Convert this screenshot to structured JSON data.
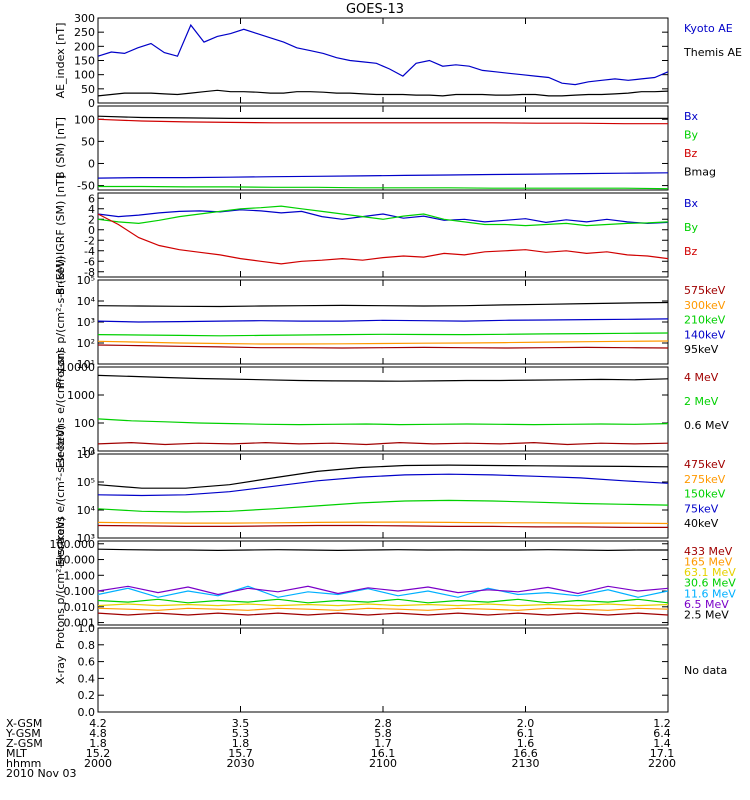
{
  "title": "GOES-13",
  "colors": {
    "black": "#000000",
    "blue": "#0000c8",
    "green": "#00d000",
    "red": "#d00000",
    "orange": "#ff9900",
    "yellow": "#e6d200",
    "cyan": "#00b0ff",
    "purple": "#7a00c8",
    "darkred": "#a00000"
  },
  "x_axis": {
    "time_labels": [
      "2000",
      "2030",
      "2100",
      "2130",
      "2200"
    ],
    "rows": [
      {
        "name": "X-GSM",
        "values": [
          "4.2",
          "3.5",
          "2.8",
          "2.0",
          "1.2"
        ]
      },
      {
        "name": "Y-GSM",
        "values": [
          "4.8",
          "5.3",
          "5.8",
          "6.1",
          "6.4"
        ]
      },
      {
        "name": "Z-GSM",
        "values": [
          "1.8",
          "1.8",
          "1.7",
          "1.6",
          "1.4"
        ]
      },
      {
        "name": "MLT",
        "values": [
          "15.2",
          "15.7",
          "16.1",
          "16.6",
          "17.1"
        ]
      },
      {
        "name": "hhmm",
        "values": [
          "2000",
          "2030",
          "2100",
          "2130",
          "2200"
        ]
      }
    ],
    "date": "2010 Nov 03"
  },
  "chart_data": [
    {
      "type": "line",
      "ylabel": "AE_index [nT]",
      "scale": "linear",
      "ylim": [
        0,
        300
      ],
      "tick_labels": [
        "0",
        "50",
        "100",
        "150",
        "200",
        "250",
        "300"
      ],
      "ticks": [
        0,
        50,
        100,
        150,
        200,
        250,
        300
      ],
      "series": [
        {
          "name": "Kyoto AE",
          "color": "#0000c8",
          "values": [
            165,
            180,
            175,
            195,
            210,
            178,
            165,
            275,
            215,
            235,
            245,
            260,
            245,
            230,
            215,
            195,
            185,
            175,
            160,
            150,
            145,
            140,
            120,
            95,
            140,
            150,
            130,
            135,
            130,
            115,
            110,
            105,
            100,
            95,
            90,
            70,
            65,
            75,
            80,
            85,
            80,
            85,
            90,
            110
          ]
        },
        {
          "name": "Themis AE",
          "color": "#000000",
          "values": [
            25,
            30,
            35,
            35,
            35,
            32,
            30,
            35,
            40,
            45,
            40,
            40,
            38,
            35,
            35,
            40,
            40,
            38,
            35,
            35,
            32,
            30,
            30,
            30,
            28,
            28,
            25,
            30,
            30,
            30,
            28,
            28,
            30,
            30,
            25,
            25,
            28,
            30,
            30,
            32,
            35,
            40,
            40,
            42
          ]
        }
      ]
    },
    {
      "type": "line",
      "ylabel": "B (SM) [nT]",
      "scale": "linear",
      "ylim": [
        -60,
        130
      ],
      "tick_labels": [
        "-50",
        "0",
        "50",
        "100"
      ],
      "ticks": [
        -50,
        0,
        50,
        100
      ],
      "series": [
        {
          "name": "Bx",
          "color": "#0000c8",
          "values": [
            -33,
            -32,
            -32,
            -31,
            -30,
            -29,
            -28,
            -27,
            -26,
            -25,
            -24,
            -23,
            -22,
            -21
          ]
        },
        {
          "name": "By",
          "color": "#00d000",
          "values": [
            -52,
            -52,
            -53,
            -53,
            -54,
            -54,
            -55,
            -55,
            -55,
            -56,
            -56,
            -56,
            -56,
            -57
          ]
        },
        {
          "name": "Bz",
          "color": "#d00000",
          "values": [
            100,
            96,
            94,
            93,
            92,
            92,
            92,
            92,
            92,
            92,
            91,
            91,
            90,
            90
          ]
        },
        {
          "name": "Bmag",
          "color": "#000000",
          "values": [
            107,
            104,
            103,
            102,
            102,
            102,
            102,
            102,
            102,
            102,
            102,
            102,
            102,
            102
          ]
        }
      ]
    },
    {
      "type": "line",
      "ylabel": "B (SM)-IGRF (SM) [nT]",
      "scale": "linear",
      "ylim": [
        -9,
        7
      ],
      "tick_labels": [
        "-8",
        "-6",
        "-4",
        "-2",
        "0",
        "2",
        "4",
        "6"
      ],
      "ticks": [
        -8,
        -6,
        -4,
        -2,
        0,
        2,
        4,
        6
      ],
      "series": [
        {
          "name": "Bx",
          "color": "#0000c8",
          "values": [
            3,
            2.5,
            2.8,
            3.2,
            3.5,
            3.6,
            3.4,
            3.8,
            3.6,
            3.2,
            3.5,
            2.5,
            2.0,
            2.5,
            3.0,
            2.2,
            2.6,
            1.8,
            2.0,
            1.5,
            1.8,
            2.1,
            1.4,
            1.9,
            1.5,
            2.0,
            1.5,
            1.2,
            1.4
          ]
        },
        {
          "name": "By",
          "color": "#00d000",
          "values": [
            2,
            1.5,
            1.2,
            1.8,
            2.5,
            3.0,
            3.5,
            4.0,
            4.2,
            4.5,
            4.0,
            3.5,
            3.0,
            2.5,
            2.0,
            2.6,
            3.0,
            2.0,
            1.5,
            1.0,
            1.0,
            0.8,
            1.0,
            1.2,
            0.8,
            1.0,
            1.2,
            1.3,
            1.5
          ]
        },
        {
          "name": "Bz",
          "color": "#d00000",
          "values": [
            3,
            1,
            -1.5,
            -3,
            -3.8,
            -4.3,
            -4.8,
            -5.5,
            -6.0,
            -6.5,
            -6.0,
            -5.8,
            -5.5,
            -5.8,
            -5.3,
            -5.0,
            -5.2,
            -4.5,
            -4.8,
            -4.2,
            -4.0,
            -3.8,
            -4.3,
            -4.0,
            -4.5,
            -4.2,
            -4.8,
            -5.0,
            -5.5
          ]
        }
      ]
    },
    {
      "type": "line",
      "ylabel": "Protons p/(cm²-s-sr-keV)",
      "scale": "log",
      "ylim": [
        10,
        100000
      ],
      "tick_labels": [
        "10¹",
        "10²",
        "10³",
        "10⁴",
        "10⁵"
      ],
      "ticks": [
        10,
        100,
        1000,
        10000,
        100000
      ],
      "series": [
        {
          "name": "575keV",
          "color": "#a00000",
          "values": [
            80,
            75,
            70,
            65,
            60,
            60,
            58,
            60,
            62,
            60,
            58,
            60,
            62,
            60,
            58
          ]
        },
        {
          "name": "300keV",
          "color": "#ff9900",
          "values": [
            120,
            110,
            100,
            95,
            90,
            90,
            92,
            95,
            98,
            100,
            105,
            110,
            115,
            120,
            125
          ]
        },
        {
          "name": "210keV",
          "color": "#00d000",
          "values": [
            250,
            240,
            230,
            220,
            230,
            240,
            250,
            260,
            255,
            250,
            260,
            270,
            280,
            290,
            300
          ]
        },
        {
          "name": "140keV",
          "color": "#0000c8",
          "values": [
            1100,
            1000,
            1050,
            1100,
            1150,
            1100,
            1100,
            1200,
            1150,
            1100,
            1200,
            1250,
            1300,
            1350,
            1400
          ]
        },
        {
          "name": "95keV",
          "color": "#000000",
          "values": [
            6000,
            5800,
            5600,
            5500,
            5800,
            6000,
            6200,
            6000,
            5800,
            6000,
            6500,
            7000,
            7500,
            8000,
            8500
          ]
        }
      ]
    },
    {
      "type": "line",
      "ylabel": "Electrons e/(cm²-s-sr)",
      "scale": "log",
      "ylim": [
        10,
        10000
      ],
      "tick_labels": [
        "10",
        "100",
        "1000",
        "10000"
      ],
      "ticks": [
        10,
        100,
        1000,
        10000
      ],
      "series": [
        {
          "name": "4 MeV",
          "color": "#a00000",
          "values": [
            18,
            20,
            17,
            19,
            18,
            20,
            18,
            19,
            17,
            20,
            18,
            19,
            18,
            20,
            17,
            19,
            18,
            19
          ]
        },
        {
          "name": "2 MeV",
          "color": "#00d000",
          "values": [
            140,
            120,
            110,
            100,
            95,
            90,
            88,
            90,
            92,
            88,
            90,
            92,
            90,
            88,
            90,
            92,
            90,
            95
          ]
        },
        {
          "name": "0.6 MeV",
          "color": "#000000",
          "values": [
            5000,
            4600,
            4200,
            3900,
            3700,
            3500,
            3300,
            3200,
            3150,
            3100,
            3200,
            3300,
            3300,
            3400,
            3500,
            3600,
            3500,
            3800
          ]
        }
      ]
    },
    {
      "type": "line",
      "ylabel": "Electrons e/(cm²-s-sr-keV)",
      "scale": "log",
      "ylim": [
        1000,
        1000000
      ],
      "tick_labels": [
        "10³",
        "10⁴",
        "10⁵",
        "10⁶"
      ],
      "ticks": [
        1000,
        10000,
        100000,
        1000000
      ],
      "series": [
        {
          "name": "475keV",
          "color": "#a00000",
          "values": [
            2800,
            2700,
            2600,
            2600,
            2700,
            2800,
            2800,
            2700,
            2600,
            2600,
            2500,
            2500,
            2400,
            2400
          ]
        },
        {
          "name": "275keV",
          "color": "#ff9900",
          "values": [
            3600,
            3500,
            3400,
            3400,
            3500,
            3600,
            3700,
            3700,
            3600,
            3500,
            3500,
            3400,
            3400,
            3300
          ]
        },
        {
          "name": "150keV",
          "color": "#00d000",
          "values": [
            11000,
            9000,
            8500,
            9000,
            11000,
            14000,
            18000,
            21000,
            22000,
            21000,
            19000,
            17000,
            16000,
            15000
          ]
        },
        {
          "name": "75keV",
          "color": "#0000c8",
          "values": [
            35000,
            33000,
            35000,
            45000,
            70000,
            110000,
            150000,
            180000,
            190000,
            180000,
            160000,
            140000,
            110000,
            90000
          ]
        },
        {
          "name": "40keV",
          "color": "#000000",
          "values": [
            80000,
            60000,
            60000,
            80000,
            140000,
            240000,
            330000,
            390000,
            400000,
            390000,
            380000,
            370000,
            360000,
            350000
          ]
        }
      ]
    },
    {
      "type": "line",
      "ylabel": "Protons p/(cm²-s-sr-keV)",
      "scale": "log",
      "ylim": [
        0.0007,
        150
      ],
      "tick_labels": [
        "0.001",
        "0.010",
        "0.100",
        "1.000",
        "10.000",
        "100.000"
      ],
      "ticks": [
        0.001,
        0.01,
        0.1,
        1,
        10,
        100
      ],
      "series": [
        {
          "name": "433 MeV",
          "color": "#a00000",
          "values": [
            0.004,
            0.003,
            0.004,
            0.003,
            0.004,
            0.003,
            0.004,
            0.003,
            0.004,
            0.003,
            0.004,
            0.003,
            0.004,
            0.003,
            0.004,
            0.003,
            0.004,
            0.003,
            0.004,
            0.003
          ]
        },
        {
          "name": "165 MeV",
          "color": "#ff9900",
          "values": [
            0.008,
            0.007,
            0.006,
            0.008,
            0.007,
            0.006,
            0.008,
            0.007,
            0.006,
            0.008,
            0.007,
            0.006,
            0.008,
            0.007,
            0.006,
            0.008,
            0.007,
            0.006,
            0.008,
            0.007
          ]
        },
        {
          "name": "63.1 MeV",
          "color": "#e6d200",
          "values": [
            0.012,
            0.015,
            0.012,
            0.014,
            0.012,
            0.015,
            0.012,
            0.014,
            0.012,
            0.015,
            0.012,
            0.014,
            0.012,
            0.015,
            0.012,
            0.014,
            0.012,
            0.015,
            0.012,
            0.014
          ]
        },
        {
          "name": "30.6 MeV",
          "color": "#00d000",
          "values": [
            0.025,
            0.02,
            0.03,
            0.018,
            0.025,
            0.02,
            0.03,
            0.018,
            0.025,
            0.02,
            0.03,
            0.018,
            0.025,
            0.02,
            0.03,
            0.018,
            0.025,
            0.02,
            0.03,
            0.018
          ]
        },
        {
          "name": "11.6 MeV",
          "color": "#00b0ff",
          "values": [
            0.06,
            0.15,
            0.04,
            0.1,
            0.05,
            0.2,
            0.04,
            0.09,
            0.06,
            0.14,
            0.05,
            0.1,
            0.04,
            0.15,
            0.06,
            0.08,
            0.05,
            0.12,
            0.04,
            0.1
          ]
        },
        {
          "name": "6.5 MeV",
          "color": "#7a00c8",
          "values": [
            0.1,
            0.2,
            0.08,
            0.18,
            0.06,
            0.15,
            0.09,
            0.2,
            0.07,
            0.16,
            0.1,
            0.18,
            0.08,
            0.12,
            0.09,
            0.17,
            0.07,
            0.2,
            0.1,
            0.15
          ]
        },
        {
          "name": "2.5 MeV",
          "color": "#000000",
          "values": [
            45,
            42,
            40,
            40,
            38,
            40,
            42,
            40,
            38,
            40,
            42,
            40,
            41,
            40,
            40,
            42,
            40,
            38,
            40,
            40
          ]
        }
      ]
    },
    {
      "type": "line",
      "ylabel": "X-ray",
      "scale": "linear",
      "ylim": [
        0,
        1
      ],
      "tick_labels": [
        "0.0",
        "0.2",
        "0.4",
        "0.6",
        "0.8",
        "1.0"
      ],
      "ticks": [
        0,
        0.2,
        0.4,
        0.6,
        0.8,
        1.0
      ],
      "series": [],
      "note": "No data"
    }
  ]
}
